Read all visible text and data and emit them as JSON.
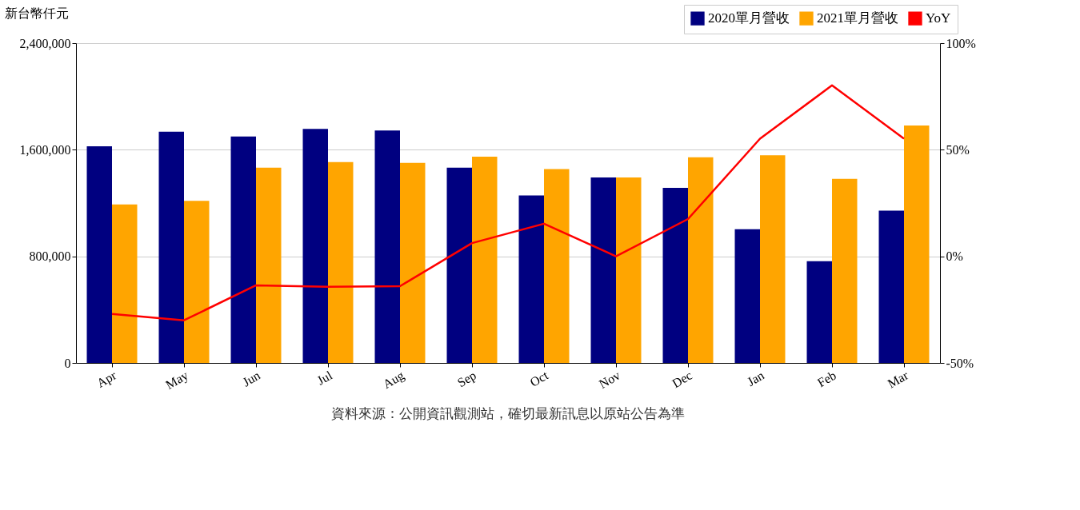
{
  "chart_data": {
    "type": "bar",
    "ylabel": "新台幣仟元",
    "categories": [
      "Apr",
      "May",
      "Jun",
      "Jul",
      "Aug",
      "Sep",
      "Oct",
      "Nov",
      "Dec",
      "Jan",
      "Feb",
      "Mar"
    ],
    "series": [
      {
        "name": "2020單月營收",
        "color": "#000080",
        "values": [
          1626000,
          1735000,
          1699000,
          1756000,
          1745000,
          1465000,
          1257000,
          1392000,
          1314000,
          1003000,
          764000,
          1143000
        ]
      },
      {
        "name": "2021單月營收",
        "color": "#ffa500",
        "values": [
          1190000,
          1216000,
          1465000,
          1507000,
          1501000,
          1548000,
          1455000,
          1392000,
          1543000,
          1559000,
          1382000,
          1782000
        ]
      },
      {
        "name": "YoY",
        "color": "#ff0000",
        "type": "line",
        "axis": "y2",
        "values": [
          -27,
          -30,
          -13.6,
          -14.3,
          -14,
          6.2,
          15.3,
          0,
          17.5,
          55.2,
          80.2,
          55.2
        ]
      }
    ],
    "ylim": [
      0,
      2400000
    ],
    "yticks": [
      {
        "value": 0,
        "label": "0"
      },
      {
        "value": 800000,
        "label": "800,000"
      },
      {
        "value": 1600000,
        "label": "1,600,000"
      },
      {
        "value": 2400000,
        "label": "2,400,000"
      }
    ],
    "y2lim": [
      -50,
      100
    ],
    "y2ticks": [
      {
        "value": -50,
        "label": "-50%"
      },
      {
        "value": 0,
        "label": "0%"
      },
      {
        "value": 50,
        "label": "50%"
      },
      {
        "value": 100,
        "label": "100%"
      }
    ],
    "grid": "y",
    "legend": "top right",
    "line_style": "solid",
    "annotations": [
      "資料來源：公開資訊觀測站，確切最新訊息以原站公告為準"
    ]
  }
}
